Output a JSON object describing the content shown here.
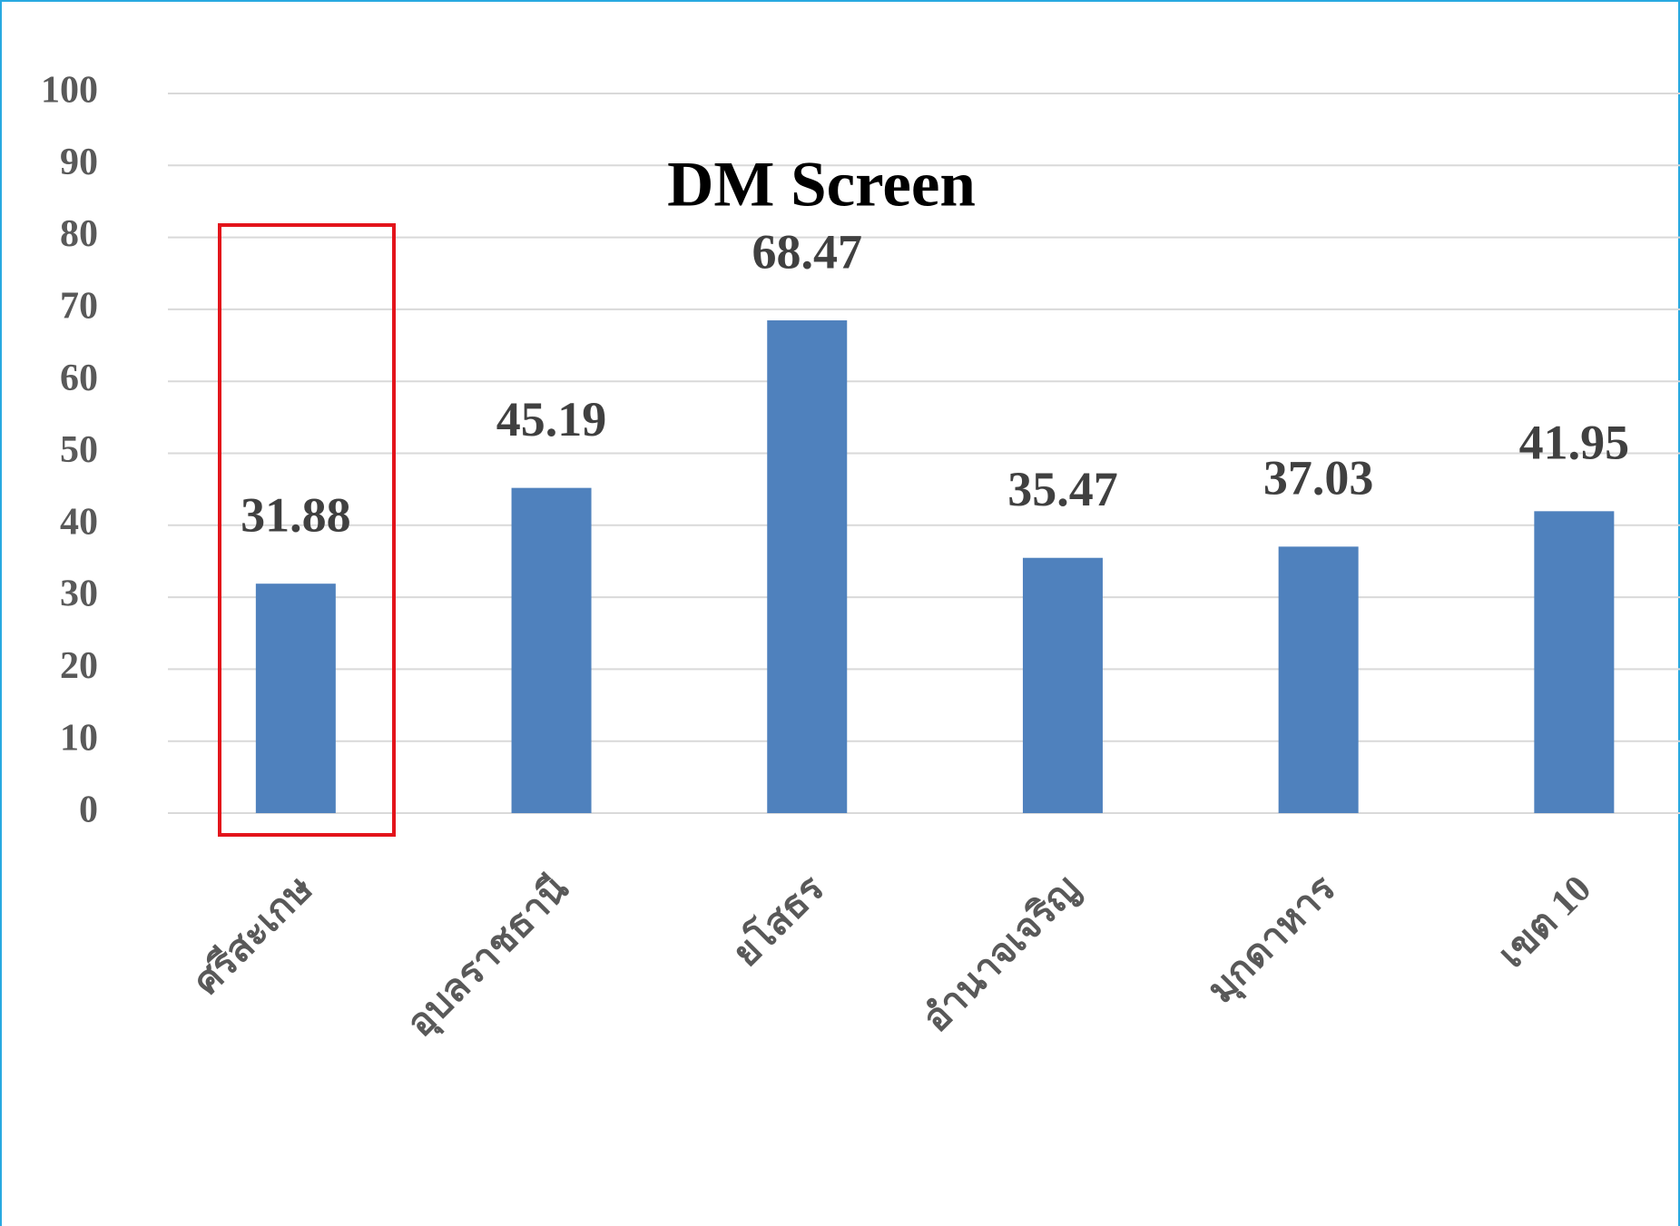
{
  "chart_data": {
    "type": "bar",
    "title": "DM Screen",
    "categories": [
      "ศรีสะเกษ",
      "อุบลราชธานี",
      "ยโสธร",
      "อำนาจเจริญ",
      "มุกดาหาร",
      "เขต 10"
    ],
    "values": [
      31.88,
      45.19,
      68.47,
      35.47,
      37.03,
      41.95
    ],
    "color": "#4f81bd",
    "ylim": [
      0,
      100
    ],
    "yticks": [
      0,
      10,
      20,
      30,
      40,
      50,
      60,
      70,
      80,
      90,
      100
    ],
    "grid": true
  }
}
